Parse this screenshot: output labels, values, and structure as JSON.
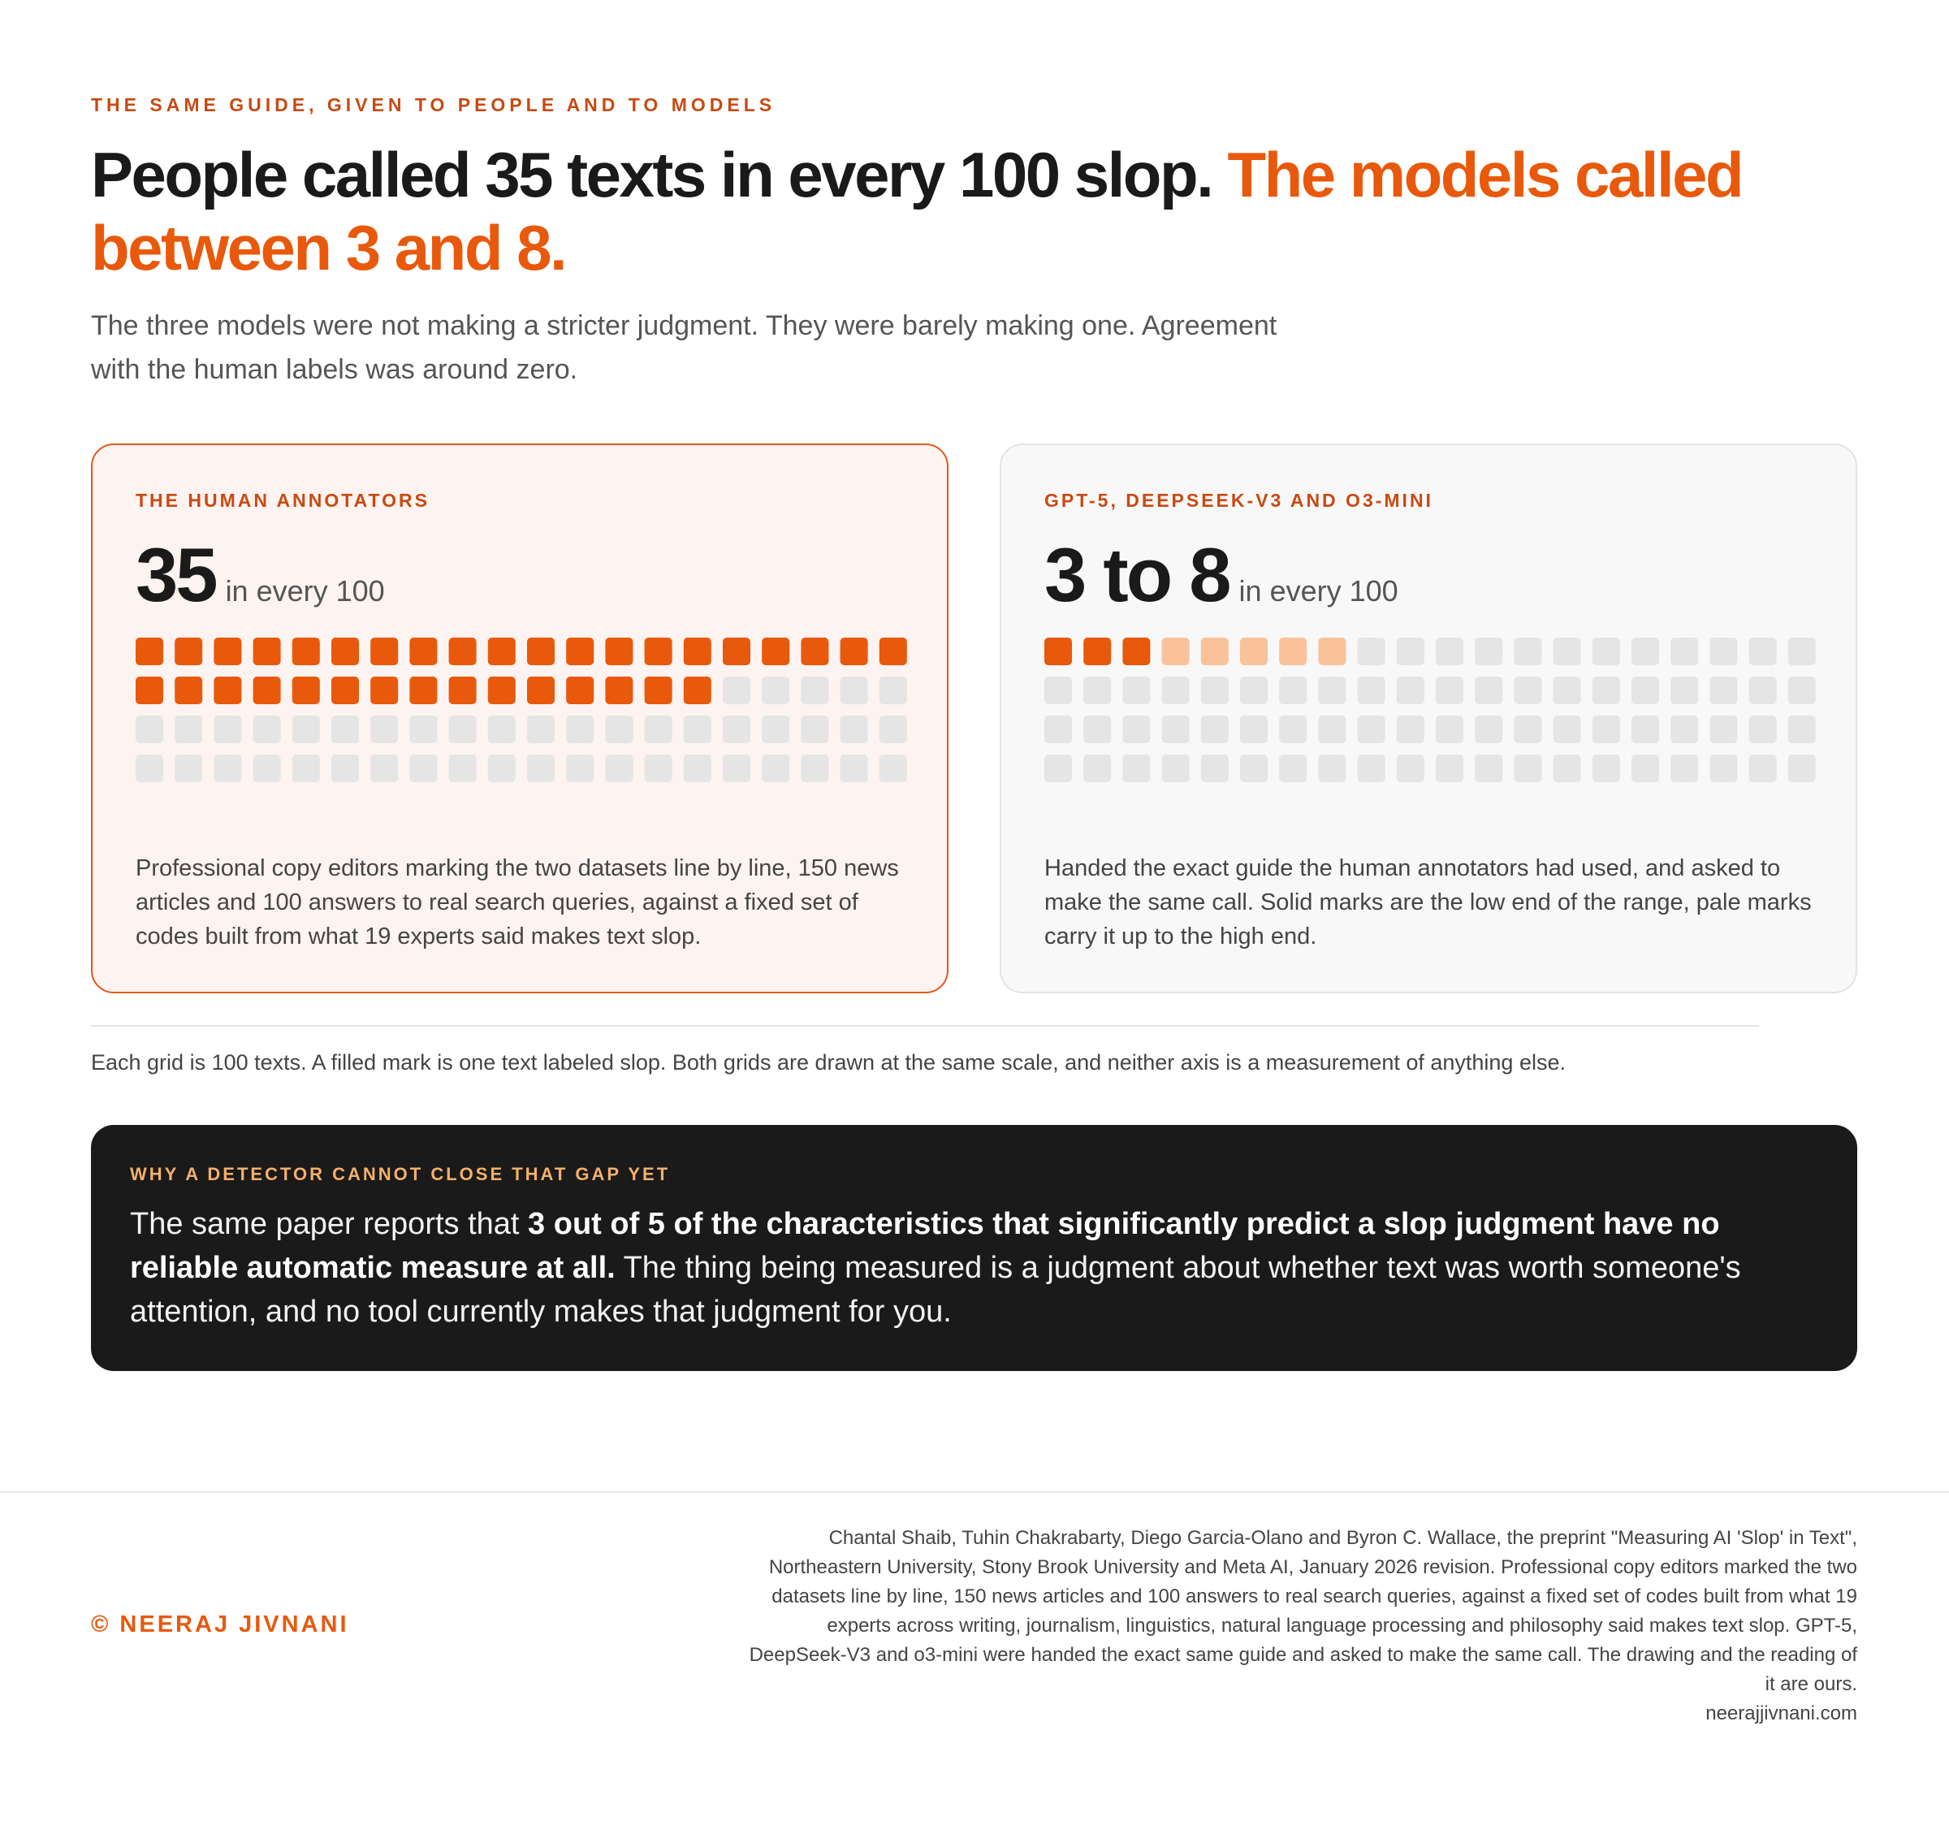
{
  "header": {
    "kicker": "The same guide, given to people and to models",
    "title_lead": "People called 35 texts in every 100 slop.",
    "title_highlight": "The models called between 3 and 8.",
    "subtitle": "The three models were not making a stricter judgment. They were barely making one. Agreement with the human labels was around zero."
  },
  "cards": [
    {
      "label": "The human annotators",
      "value": 35,
      "unit": "in every 100",
      "description": "Professional copy editors marking the two datasets line by line, 150 news articles and 100 answers to real search queries, against a fixed set of codes built from what 19 experts said makes text slop."
    },
    {
      "label": "GPT-5, DeepSeek-V3 and o3-mini",
      "low": 3,
      "connector": "to",
      "high": 8,
      "unit": "in every 100",
      "description": "Handed the exact guide the human annotators had used, and asked to make the same call. Solid marks are the low end of the range, pale marks carry it up to the high end."
    }
  ],
  "note": "Each grid is 100 texts. A filled mark is one text labeled slop. Both grids are drawn at the same scale, and neither axis is a measurement of anything else.",
  "callout": {
    "label": "Why a detector cannot close that gap yet",
    "text_before": "The same paper reports that",
    "text_bold": "3 out of 5 of the characteristics that significantly predict a slop judgment have no reliable automatic measure at all.",
    "text_after": "The thing being measured is a judgment about whether text was worth someone's attention, and no tool currently makes that judgment for you."
  },
  "footer": {
    "copyright": "© Neeraj Jivnani",
    "source": "Chantal Shaib, Tuhin Chakrabarty, Diego Garcia-Olano and Byron C. Wallace, the preprint \"Measuring AI 'Slop' in Text\", Northeastern University, Stony Brook University and Meta AI, January 2026 revision. Professional copy editors marked the two datasets line by line, 150 news articles and 100 answers to real search queries, against a fixed set of codes built from what 19 experts across writing, journalism, linguistics, natural language processing and philosophy said makes text slop. GPT-5, DeepSeek-V3 and o3-mini were handed the exact same guide and asked to make the same call. The drawing and the reading of it are ours.",
    "site": "neerajjivnani.com"
  }
}
